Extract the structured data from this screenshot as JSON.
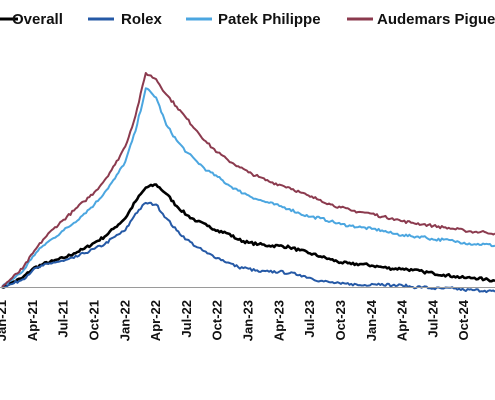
{
  "chart_data": {
    "type": "line",
    "title": "",
    "xlabel": "",
    "ylabel": "",
    "grid": false,
    "legend_position": "top",
    "x_range": [
      "2021-01",
      "2025-01"
    ],
    "y_range": [
      -3,
      70
    ],
    "baseline": 0,
    "x_ticks": [
      {
        "label": "Jan-21",
        "x": "2021-01"
      },
      {
        "label": "Apr-21",
        "x": "2021-04"
      },
      {
        "label": "Jul-21",
        "x": "2021-07"
      },
      {
        "label": "Oct-21",
        "x": "2021-10"
      },
      {
        "label": "Jan-22",
        "x": "2022-01"
      },
      {
        "label": "Apr-22",
        "x": "2022-04"
      },
      {
        "label": "Jul-22",
        "x": "2022-07"
      },
      {
        "label": "Oct-22",
        "x": "2022-10"
      },
      {
        "label": "Jan-23",
        "x": "2023-01"
      },
      {
        "label": "Apr-23",
        "x": "2023-04"
      },
      {
        "label": "Jul-23",
        "x": "2023-07"
      },
      {
        "label": "Oct-23",
        "x": "2023-10"
      },
      {
        "label": "Jan-24",
        "x": "2024-01"
      },
      {
        "label": "Apr-24",
        "x": "2024-04"
      },
      {
        "label": "Jul-24",
        "x": "2024-07"
      },
      {
        "label": "Oct-24",
        "x": "2024-10"
      }
    ],
    "x": [
      "2021-01",
      "2021-02",
      "2021-03",
      "2021-04",
      "2021-05",
      "2021-06",
      "2021-07",
      "2021-08",
      "2021-09",
      "2021-10",
      "2021-11",
      "2021-12",
      "2022-01",
      "2022-02",
      "2022-03",
      "2022-04",
      "2022-05",
      "2022-06",
      "2022-07",
      "2022-08",
      "2022-09",
      "2022-10",
      "2022-11",
      "2022-12",
      "2023-01",
      "2023-02",
      "2023-03",
      "2023-04",
      "2023-05",
      "2023-06",
      "2023-07",
      "2023-08",
      "2023-09",
      "2023-10",
      "2023-11",
      "2023-12",
      "2024-01",
      "2024-02",
      "2024-03",
      "2024-04",
      "2024-05",
      "2024-06",
      "2024-07",
      "2024-08",
      "2024-09",
      "2024-10",
      "2024-11",
      "2024-12",
      "2025-01"
    ],
    "series": [
      {
        "name": "Overall",
        "color": "#000000",
        "values": [
          0,
          1.5,
          3,
          6,
          7.5,
          8.5,
          9.5,
          11,
          12.5,
          14.5,
          16.5,
          19.5,
          22.5,
          28,
          32.5,
          33.5,
          30.5,
          26.5,
          23.5,
          21.5,
          20,
          18.5,
          17.5,
          15.5,
          14.5,
          14,
          13.5,
          13.5,
          13,
          12,
          11,
          10,
          9,
          8,
          7.5,
          7.5,
          7,
          6.5,
          6,
          6,
          5.5,
          5,
          4.5,
          4,
          3.5,
          3,
          3,
          2.5,
          2
        ]
      },
      {
        "name": "Rolex",
        "color": "#2559a6",
        "values": [
          0,
          1,
          2.5,
          5.5,
          7,
          8,
          8.5,
          9.5,
          11,
          12.5,
          14,
          16.5,
          18.5,
          24,
          27.5,
          27,
          22.5,
          18.5,
          15.5,
          13,
          11,
          9.5,
          8,
          6.5,
          6,
          5,
          5,
          5,
          4.5,
          4,
          3,
          2,
          1.5,
          1,
          1,
          0.5,
          1,
          1,
          0.5,
          0.5,
          0,
          0,
          -0.5,
          -0.5,
          -0.5,
          -1,
          -1,
          -1.2,
          -1.5
        ]
      },
      {
        "name": "Patek Philippe",
        "color": "#4ba6e0",
        "values": [
          0,
          2.5,
          5,
          10,
          13.5,
          16,
          18.5,
          21,
          24,
          27,
          31,
          35.5,
          41,
          51,
          65,
          62,
          53,
          48,
          44,
          41,
          38,
          36,
          33.5,
          31.5,
          30,
          28.5,
          27.5,
          26.5,
          25.5,
          24,
          23,
          22.5,
          21.5,
          20.5,
          20,
          19.5,
          19,
          18.5,
          17.5,
          17,
          16.5,
          16.5,
          15.5,
          15.5,
          15,
          14.5,
          14,
          14,
          13.5
        ]
      },
      {
        "name": "Audemars Piguet",
        "color": "#8b3a4e",
        "values": [
          0,
          3,
          6,
          11,
          15.5,
          19,
          22,
          25,
          28,
          31,
          35,
          40,
          46,
          56,
          70,
          68,
          63,
          59,
          55,
          51,
          47,
          44,
          41.5,
          39.5,
          37.5,
          36,
          34.5,
          33.5,
          32.5,
          31,
          29.5,
          28.5,
          27,
          26,
          25,
          24.5,
          24,
          23,
          22.5,
          21.5,
          21,
          20.5,
          20,
          19.5,
          19,
          18.5,
          18,
          18,
          17.5
        ]
      }
    ]
  },
  "legend": [
    {
      "label": "Overall",
      "color": "#000000"
    },
    {
      "label": "Rolex",
      "color": "#2559a6"
    },
    {
      "label": "Patek Philippe",
      "color": "#4ba6e0"
    },
    {
      "label": "Audemars Piguet",
      "color": "#8b3a4e"
    }
  ]
}
